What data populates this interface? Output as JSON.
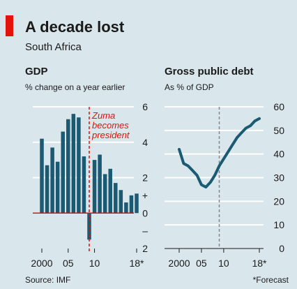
{
  "header": {
    "title": "A decade lost",
    "subtitle": "South Africa"
  },
  "chart_data": [
    {
      "type": "bar",
      "title": "GDP",
      "subtitle": "% change on a year earlier",
      "years": [
        2000,
        2001,
        2002,
        2003,
        2004,
        2005,
        2006,
        2007,
        2008,
        2009,
        2010,
        2011,
        2012,
        2013,
        2014,
        2015,
        2016,
        2017,
        2018
      ],
      "values": [
        4.2,
        2.7,
        3.7,
        2.9,
        4.6,
        5.3,
        5.6,
        5.4,
        3.2,
        -1.5,
        3.0,
        3.3,
        2.2,
        2.5,
        1.7,
        1.3,
        0.6,
        1.0,
        1.1
      ],
      "forecast_from": 2018,
      "ylim": [
        -2,
        6
      ],
      "y_tick_labels": [
        {
          "value": 6,
          "label": "6"
        },
        {
          "value": 4,
          "label": "4"
        },
        {
          "value": 2,
          "label": "2"
        },
        {
          "value": 1,
          "label": "+"
        },
        {
          "value": 0,
          "label": "0"
        },
        {
          "value": -1,
          "label": "–"
        },
        {
          "value": -2,
          "label": "2"
        }
      ],
      "x_tick_labels": [
        {
          "year": 2000,
          "label": "2000"
        },
        {
          "year": 2005,
          "label": "05"
        },
        {
          "year": 2010,
          "label": "10"
        },
        {
          "year": 2018,
          "label": "18*"
        }
      ],
      "annotation": {
        "year": 2009,
        "lines": [
          "Zuma",
          "becomes",
          "president"
        ]
      },
      "colors": {
        "bar": "#1a5a72",
        "zero_line": "#e3120b",
        "annotation": "#e3120b"
      }
    },
    {
      "type": "line",
      "title": "Gross public debt",
      "subtitle": "As % of GDP",
      "x": [
        2000,
        2001,
        2002,
        2003,
        2004,
        2005,
        2006,
        2007,
        2008,
        2009,
        2010,
        2011,
        2012,
        2013,
        2014,
        2015,
        2016,
        2017,
        2018
      ],
      "y": [
        42,
        36,
        35,
        33,
        31,
        27,
        26,
        28,
        31,
        35,
        38,
        41,
        44,
        47,
        49,
        51,
        52,
        54,
        55
      ],
      "ylim": [
        0,
        60
      ],
      "y_tick_labels": [
        "0",
        "10",
        "20",
        "30",
        "40",
        "50",
        "60"
      ],
      "x_tick_labels": [
        {
          "year": 2000,
          "label": "2000"
        },
        {
          "year": 2005,
          "label": "05"
        },
        {
          "year": 2010,
          "label": "10"
        },
        {
          "year": 2018,
          "label": "18*"
        }
      ],
      "marker_year": 2009,
      "colors": {
        "line": "#1a5a72",
        "marker": "#888888"
      }
    }
  ],
  "footer": {
    "source": "Source: IMF",
    "footnote": "*Forecast"
  }
}
